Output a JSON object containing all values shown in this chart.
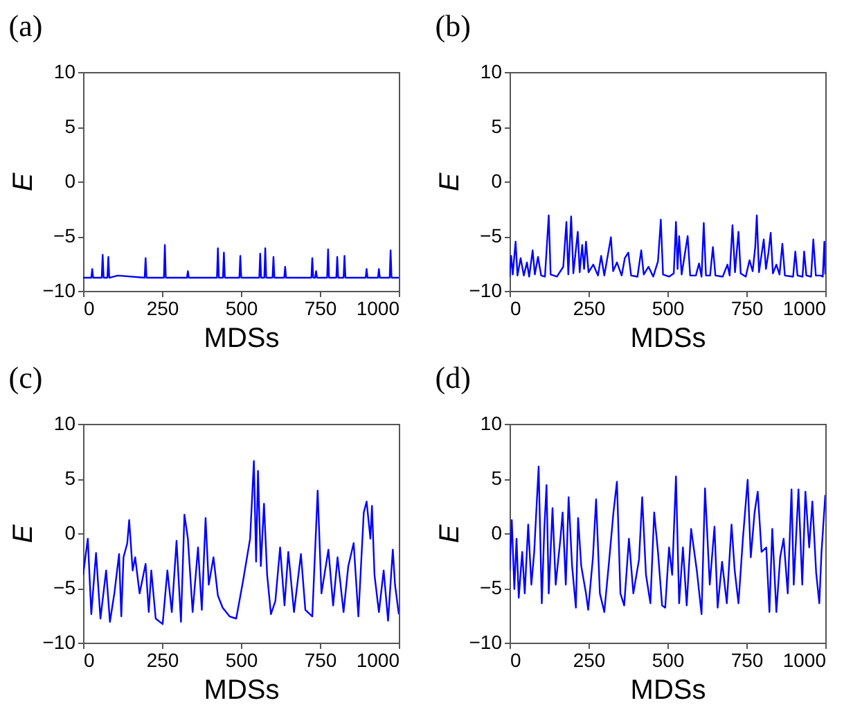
{
  "chart_data": [
    {
      "type": "line",
      "title": "(a)",
      "xlabel": "MDSs",
      "ylabel": "E",
      "xlim": [
        0,
        1000
      ],
      "xticks": [
        0,
        250,
        500,
        750,
        1000
      ],
      "ylim": [
        -10,
        10
      ],
      "yticks": [
        -10,
        -5,
        0,
        5,
        10
      ],
      "x": [
        0,
        26,
        29,
        32,
        59,
        62,
        65,
        77,
        80,
        83,
        110,
        195,
        198,
        201,
        256,
        259,
        262,
        329,
        332,
        335,
        424,
        427,
        430,
        443,
        446,
        449,
        495,
        498,
        501,
        558,
        561,
        564,
        574,
        577,
        580,
        600,
        603,
        606,
        637,
        640,
        643,
        723,
        726,
        729,
        735,
        738,
        741,
        773,
        776,
        779,
        802,
        805,
        808,
        825,
        828,
        831,
        895,
        898,
        901,
        934,
        937,
        940,
        971,
        974,
        977,
        1000
      ],
      "series": [
        {
          "color": "#0000ff",
          "values": [
            -8.8,
            -8.8,
            -8.0,
            -8.8,
            -8.8,
            -6.7,
            -8.8,
            -8.8,
            -6.9,
            -8.8,
            -8.6,
            -8.8,
            -7.0,
            -8.8,
            -8.8,
            -5.8,
            -8.8,
            -8.8,
            -8.2,
            -8.8,
            -8.8,
            -6.1,
            -8.8,
            -8.8,
            -6.5,
            -8.8,
            -8.8,
            -6.8,
            -8.8,
            -8.8,
            -6.6,
            -8.8,
            -8.8,
            -6.1,
            -8.8,
            -8.8,
            -6.9,
            -8.8,
            -8.8,
            -7.8,
            -8.8,
            -8.8,
            -7.0,
            -8.8,
            -8.8,
            -8.2,
            -8.8,
            -8.8,
            -6.2,
            -8.8,
            -8.8,
            -6.9,
            -8.8,
            -8.8,
            -6.8,
            -8.8,
            -8.8,
            -8.0,
            -8.8,
            -8.8,
            -8.0,
            -8.8,
            -8.8,
            -6.3,
            -8.8,
            -8.8
          ]
        }
      ]
    },
    {
      "type": "line",
      "title": "(b)",
      "xlabel": "MDSs",
      "ylabel": "E",
      "xlim": [
        0,
        1000
      ],
      "xticks": [
        0,
        250,
        500,
        750,
        1000
      ],
      "ylim": [
        -10,
        10
      ],
      "yticks": [
        -10,
        -5,
        0,
        5,
        10
      ],
      "x": [
        0,
        5,
        10,
        19,
        25,
        35,
        45,
        55,
        62,
        73,
        80,
        90,
        100,
        112,
        124,
        130,
        150,
        170,
        180,
        186,
        195,
        202,
        216,
        222,
        230,
        236,
        242,
        250,
        265,
        280,
        290,
        300,
        321,
        328,
        340,
        355,
        365,
        376,
        385,
        405,
        417,
        425,
        440,
        455,
        470,
        479,
        486,
        505,
        520,
        527,
        532,
        537,
        545,
        564,
        572,
        590,
        600,
        608,
        615,
        622,
        635,
        644,
        652,
        675,
        690,
        697,
        706,
        714,
        725,
        732,
        748,
        760,
        770,
        778,
        783,
        790,
        805,
        812,
        820,
        827,
        834,
        845,
        855,
        864,
        872,
        898,
        905,
        912,
        928,
        933,
        940,
        955,
        962,
        970,
        985,
        992,
        997,
        1000
      ],
      "series": [
        {
          "color": "#0000ff",
          "values": [
            -8.7,
            -6.8,
            -8.5,
            -5.5,
            -8.6,
            -7.0,
            -8.6,
            -7.4,
            -8.7,
            -6.3,
            -8.5,
            -6.9,
            -8.6,
            -8.7,
            -3.1,
            -8.5,
            -8.7,
            -7.8,
            -3.7,
            -8.5,
            -3.2,
            -8.4,
            -4.6,
            -8.3,
            -5.8,
            -8.0,
            -5.5,
            -8.3,
            -7.6,
            -8.6,
            -6.8,
            -8.6,
            -5.1,
            -8.2,
            -7.4,
            -8.6,
            -7.0,
            -6.5,
            -8.6,
            -8.7,
            -6.3,
            -8.5,
            -7.8,
            -8.7,
            -7.3,
            -3.5,
            -8.5,
            -8.7,
            -8.4,
            -3.7,
            -8.0,
            -5.0,
            -8.5,
            -5.0,
            -8.6,
            -8.6,
            -7.5,
            -8.7,
            -3.8,
            -8.6,
            -8.6,
            -6.0,
            -8.6,
            -8.7,
            -7.6,
            -8.6,
            -4.0,
            -8.3,
            -4.6,
            -8.4,
            -8.7,
            -7.2,
            -8.2,
            -6.0,
            -3.1,
            -8.3,
            -5.3,
            -8.0,
            -6.5,
            -4.7,
            -8.4,
            -7.6,
            -8.5,
            -5.7,
            -8.6,
            -8.7,
            -6.4,
            -8.6,
            -8.7,
            -6.4,
            -8.6,
            -8.7,
            -5.3,
            -8.6,
            -8.6,
            -8.7,
            -5.5,
            -8.5
          ]
        }
      ]
    },
    {
      "type": "line",
      "title": "(c)",
      "xlabel": "MDSs",
      "ylabel": "E",
      "xlim": [
        0,
        1000
      ],
      "xticks": [
        0,
        250,
        500,
        750,
        1000
      ],
      "ylim": [
        -10,
        10
      ],
      "yticks": [
        -10,
        -5,
        0,
        5,
        10
      ],
      "x": [
        0,
        15,
        26,
        41,
        55,
        73,
        85,
        99,
        114,
        121,
        128,
        140,
        146,
        157,
        165,
        179,
        198,
        208,
        216,
        230,
        252,
        267,
        281,
        296,
        310,
        321,
        332,
        347,
        364,
        376,
        388,
        398,
        413,
        427,
        442,
        464,
        485,
        507,
        529,
        541,
        548,
        554,
        563,
        573,
        583,
        595,
        609,
        624,
        638,
        650,
        668,
        690,
        704,
        726,
        743,
        755,
        777,
        792,
        806,
        825,
        840,
        857,
        872,
        889,
        898,
        910,
        915,
        923,
        937,
        952,
        966,
        981,
        988,
        1000
      ],
      "series": [
        {
          "color": "#0000ff",
          "values": [
            -3.8,
            -0.5,
            -7.4,
            -1.8,
            -7.8,
            -3.4,
            -8.1,
            -5.5,
            -1.9,
            -7.6,
            -2.2,
            -0.9,
            1.2,
            -3.4,
            -2.2,
            -5.5,
            -2.8,
            -7.2,
            -3.4,
            -7.8,
            -8.3,
            -3.4,
            -7.2,
            -0.7,
            -8.1,
            1.7,
            -0.5,
            -7.2,
            -1.3,
            -7.0,
            1.4,
            -4.7,
            -2.2,
            -5.7,
            -6.8,
            -7.6,
            -7.8,
            -4.3,
            -0.5,
            6.6,
            -2.6,
            5.7,
            -3.0,
            2.7,
            -3.8,
            -7.4,
            -6.2,
            -1.3,
            -6.6,
            -1.7,
            -7.2,
            -1.9,
            -7.0,
            -7.6,
            3.9,
            -5.5,
            -1.5,
            -6.6,
            -2.2,
            -7.2,
            -3.0,
            -0.9,
            -7.6,
            1.9,
            2.9,
            -0.5,
            2.5,
            -3.8,
            -7.2,
            -3.4,
            -8.0,
            -1.5,
            -4.7,
            -7.4
          ]
        }
      ]
    },
    {
      "type": "line",
      "title": "(d)",
      "xlabel": "MDSs",
      "ylabel": "E",
      "xlim": [
        0,
        1000
      ],
      "xticks": [
        0,
        250,
        500,
        750,
        1000
      ],
      "ylim": [
        -10,
        10
      ],
      "yticks": [
        -10,
        -5,
        0,
        5,
        10
      ],
      "x": [
        0,
        7,
        15,
        22,
        29,
        40,
        48,
        59,
        69,
        78,
        92,
        102,
        110,
        117,
        124,
        136,
        146,
        161,
        168,
        178,
        187,
        198,
        210,
        217,
        227,
        242,
        249,
        264,
        274,
        286,
        300,
        315,
        329,
        340,
        351,
        363,
        378,
        392,
        410,
        420,
        432,
        446,
        458,
        470,
        483,
        493,
        505,
        515,
        527,
        537,
        549,
        561,
        575,
        593,
        608,
        619,
        634,
        649,
        659,
        673,
        688,
        703,
        713,
        725,
        739,
        754,
        764,
        776,
        786,
        798,
        813,
        823,
        832,
        845,
        857,
        868,
        881,
        893,
        900,
        915,
        927,
        937,
        949,
        959,
        971,
        981,
        988,
        1000
      ],
      "series": [
        {
          "color": "#0000ff",
          "values": [
            -3.4,
            1.2,
            -5.1,
            -0.5,
            -5.9,
            -1.7,
            -5.5,
            0.8,
            -4.7,
            -1.7,
            6.1,
            -6.4,
            0.4,
            4.4,
            -5.5,
            2.3,
            -4.7,
            -0.5,
            1.9,
            -4.7,
            3.3,
            -3.0,
            -6.8,
            1.4,
            -3.0,
            -5.5,
            -7.0,
            -2.2,
            3.1,
            -5.5,
            -7.2,
            -2.6,
            1.9,
            4.7,
            -5.5,
            -6.6,
            -0.5,
            -5.5,
            -2.4,
            3.3,
            -3.8,
            -6.4,
            1.9,
            -1.7,
            -6.6,
            -6.8,
            -1.3,
            -3.8,
            5.2,
            -6.4,
            -1.3,
            -6.6,
            0.4,
            -3.4,
            -7.4,
            4.1,
            -4.7,
            0.6,
            -6.8,
            -2.6,
            -6.4,
            0.8,
            -3.4,
            -6.4,
            -0.5,
            4.9,
            -2.2,
            1.9,
            3.8,
            -1.7,
            -1.3,
            -7.2,
            0.4,
            -7.2,
            -2.2,
            -0.5,
            -5.5,
            4.0,
            -4.7,
            4.0,
            -4.7,
            3.8,
            -1.3,
            2.9,
            -3.6,
            -6.4,
            -1.7,
            3.5
          ]
        }
      ]
    }
  ]
}
